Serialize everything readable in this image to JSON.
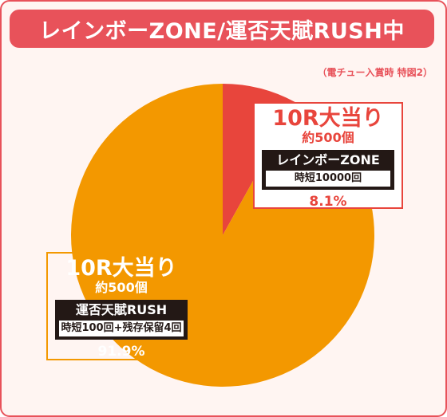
{
  "title": "レインボーZONE/運否天賦RUSH中",
  "note": "（電チュー入賞時 特図2）",
  "colors": {
    "accent": "#e8525a",
    "slice_red": "#e8453c",
    "slice_orange": "#f39800",
    "label_dark": "#231815"
  },
  "chart_data": {
    "type": "pie",
    "title": "レインボーZONE/運否天賦RUSH中",
    "slices": [
      {
        "label": "10R大当り",
        "balls": "約500個",
        "mode": "レインボーZONE",
        "detail": "時短10000回",
        "value": 8.1,
        "value_label": "8.1%",
        "color": "#e8453c"
      },
      {
        "label": "10R大当り",
        "balls": "約500個",
        "mode": "運否天賦RUSH",
        "detail": "時短100回+残存保留4回",
        "value": 91.9,
        "value_label": "91.9%",
        "color": "#f39800"
      }
    ]
  }
}
